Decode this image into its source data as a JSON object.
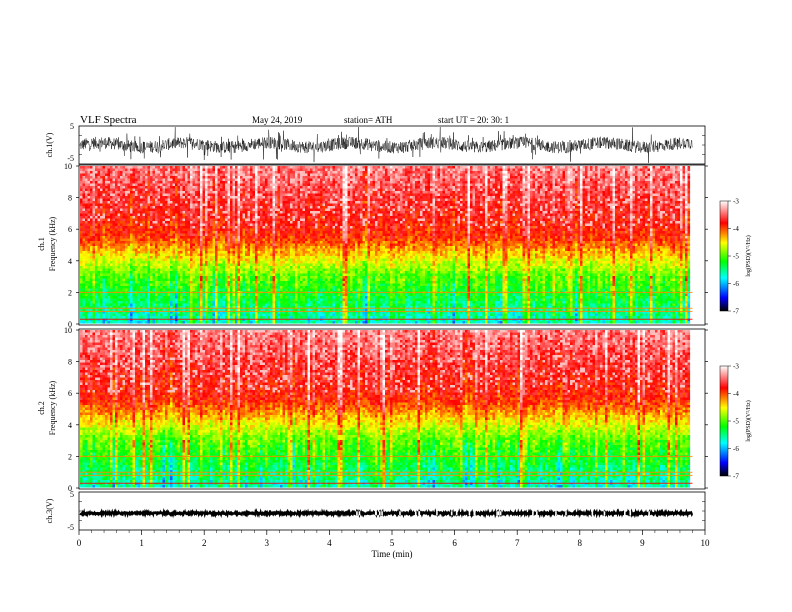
{
  "header": {
    "title": "VLF  Spectra",
    "date": "May 24, 2019",
    "station": "station= ATH",
    "start": "start  UT  =    20: 30: 1"
  },
  "chart_data": [
    {
      "type": "line",
      "name": "ch1-waveform",
      "ylabel": "ch.1(V)",
      "ylim": [
        -5,
        5
      ],
      "yticks": [
        "5",
        "-5"
      ],
      "xlim": [
        0,
        10
      ],
      "x_extent": 9.8
    },
    {
      "type": "heatmap",
      "name": "ch1-spectrogram",
      "ylabel": "ch.1\nFrequency (kHz)",
      "ylim": [
        0,
        10
      ],
      "yticks": [
        "0",
        "2",
        "4",
        "6",
        "8",
        "10"
      ],
      "xlim": [
        0,
        10
      ],
      "x_extent": 9.8,
      "colorbar": {
        "label": "log(PSD)(V²/Hz)",
        "range": [
          -7,
          -3
        ],
        "ticks": [
          "-3",
          "-4",
          "-5",
          "-6",
          "-7"
        ]
      }
    },
    {
      "type": "heatmap",
      "name": "ch2-spectrogram",
      "ylabel": "ch.2\nFrequency (kHz)",
      "ylim": [
        0,
        10
      ],
      "yticks": [
        "0",
        "2",
        "4",
        "6",
        "8",
        "10"
      ],
      "xlim": [
        0,
        10
      ],
      "x_extent": 9.8,
      "colorbar": {
        "label": "log(PSD)(V²/Hz)",
        "range": [
          -7,
          -3
        ],
        "ticks": [
          "-3",
          "-4",
          "-5",
          "-6",
          "-7"
        ]
      }
    },
    {
      "type": "line",
      "name": "ch3-waveform",
      "ylabel": "ch.3(V)",
      "ylim": [
        -5,
        5
      ],
      "yticks": [
        "5",
        "-5"
      ],
      "xlim": [
        0,
        10
      ],
      "x_extent": 9.8
    }
  ],
  "xaxis": {
    "label": "Time  (min)",
    "ticks": [
      "0",
      "1",
      "2",
      "3",
      "4",
      "5",
      "6",
      "7",
      "8",
      "9",
      "10"
    ]
  },
  "colors": {
    "low": "#000000",
    "c1": "#0000ff",
    "c2": "#00ffff",
    "c3": "#00ff00",
    "c4": "#ffff00",
    "c5": "#ff0000",
    "high": "#ffffff"
  }
}
